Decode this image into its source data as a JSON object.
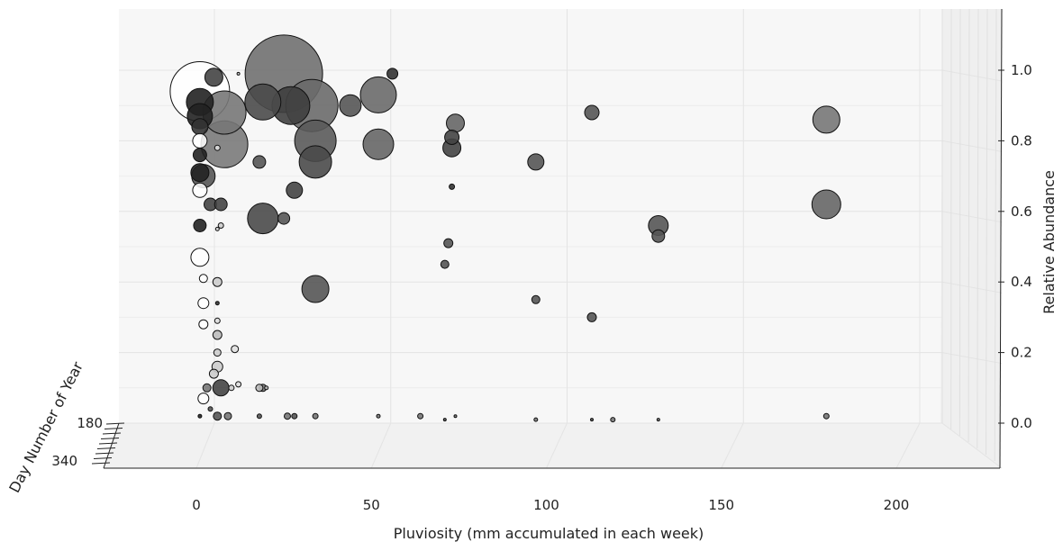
{
  "chart_data": {
    "type": "scatter",
    "projection": "3d",
    "title": "",
    "xlabel": "Pluviosity (mm accumulated in each week)",
    "ylabel": "Day Number of Year",
    "zlabel": "Relative Abundance",
    "xticks": [
      "0",
      "50",
      "100",
      "150",
      "200"
    ],
    "yticks": [
      "180",
      "340"
    ],
    "zticks": [
      "0.0",
      "0.2",
      "0.4",
      "0.6",
      "0.8",
      "1.0"
    ],
    "xlim": [
      -25,
      230
    ],
    "zlim": [
      -0.12,
      1.17
    ],
    "grid": true,
    "colors": {
      "pane": "#f7f7f7",
      "grid": "#e4e4e4",
      "marker_edge": "#111111",
      "marker_fill_dark": "#555555",
      "marker_fill_light": "#d8d8d8",
      "marker_fill_white": "#ffffff"
    },
    "points_note": "x = pluviosity (mm), z = relative abundance, s = relative bubble size, c = fill",
    "points": [
      {
        "x": 25,
        "z": 0.99,
        "s": 43,
        "c": "#707070"
      },
      {
        "x": 1,
        "z": 0.94,
        "s": 33,
        "c": "#ffffff"
      },
      {
        "x": 33,
        "z": 0.9,
        "s": 29,
        "c": "#6a6a6a"
      },
      {
        "x": 8,
        "z": 0.79,
        "s": 26,
        "c": "#7a7a7a"
      },
      {
        "x": 8,
        "z": 0.88,
        "s": 24,
        "c": "#777777"
      },
      {
        "x": 19,
        "z": 0.58,
        "s": 17,
        "c": "#4a4a4a"
      },
      {
        "x": 19,
        "z": 0.91,
        "s": 20,
        "c": "#4a4a4a"
      },
      {
        "x": 27,
        "z": 0.9,
        "s": 21,
        "c": "#3f3f3f"
      },
      {
        "x": 34,
        "z": 0.8,
        "s": 23,
        "c": "#5a5a5a"
      },
      {
        "x": 34,
        "z": 0.74,
        "s": 18,
        "c": "#4a4a4a"
      },
      {
        "x": 34,
        "z": 0.38,
        "s": 15,
        "c": "#555555"
      },
      {
        "x": 52,
        "z": 0.93,
        "s": 20,
        "c": "#6a6a6a"
      },
      {
        "x": 52,
        "z": 0.79,
        "s": 17,
        "c": "#666666"
      },
      {
        "x": 44,
        "z": 0.9,
        "s": 12,
        "c": "#555555"
      },
      {
        "x": 56,
        "z": 0.99,
        "s": 6,
        "c": "#333333"
      },
      {
        "x": 74,
        "z": 0.85,
        "s": 10,
        "c": "#666666"
      },
      {
        "x": 73,
        "z": 0.81,
        "s": 8,
        "c": "#444444"
      },
      {
        "x": 73,
        "z": 0.78,
        "s": 10,
        "c": "#444444"
      },
      {
        "x": 73,
        "z": 0.67,
        "s": 3,
        "c": "#333333"
      },
      {
        "x": 72,
        "z": 0.51,
        "s": 5,
        "c": "#555555"
      },
      {
        "x": 71,
        "z": 0.45,
        "s": 4.5,
        "c": "#555555"
      },
      {
        "x": 97,
        "z": 0.74,
        "s": 9,
        "c": "#555555"
      },
      {
        "x": 97,
        "z": 0.35,
        "s": 4.5,
        "c": "#555555"
      },
      {
        "x": 113,
        "z": 0.88,
        "s": 8,
        "c": "#555555"
      },
      {
        "x": 113,
        "z": 0.3,
        "s": 5,
        "c": "#555555"
      },
      {
        "x": 132,
        "z": 0.56,
        "s": 11,
        "c": "#555555"
      },
      {
        "x": 132,
        "z": 0.53,
        "s": 7,
        "c": "#555555"
      },
      {
        "x": 180,
        "z": 0.86,
        "s": 15,
        "c": "#777777"
      },
      {
        "x": 180,
        "z": 0.62,
        "s": 16,
        "c": "#666666"
      },
      {
        "x": 5,
        "z": 0.98,
        "s": 10,
        "c": "#444444"
      },
      {
        "x": 1,
        "z": 0.91,
        "s": 15,
        "c": "#222222"
      },
      {
        "x": 1,
        "z": 0.87,
        "s": 14,
        "c": "#222222"
      },
      {
        "x": 1,
        "z": 0.84,
        "s": 9,
        "c": "#333333"
      },
      {
        "x": 1,
        "z": 0.8,
        "s": 8,
        "c": "#ffffff"
      },
      {
        "x": 1,
        "z": 0.76,
        "s": 7.5,
        "c": "#222222"
      },
      {
        "x": 2,
        "z": 0.7,
        "s": 13,
        "c": "#555555"
      },
      {
        "x": 1,
        "z": 0.71,
        "s": 10,
        "c": "#222222"
      },
      {
        "x": 1,
        "z": 0.66,
        "s": 8,
        "c": "#ffffff"
      },
      {
        "x": 4,
        "z": 0.62,
        "s": 7,
        "c": "#444444"
      },
      {
        "x": 7,
        "z": 0.62,
        "s": 7,
        "c": "#444444"
      },
      {
        "x": 1,
        "z": 0.56,
        "s": 7,
        "c": "#222222"
      },
      {
        "x": 1,
        "z": 0.47,
        "s": 10,
        "c": "#ffffff"
      },
      {
        "x": 2,
        "z": 0.41,
        "s": 4.5,
        "c": "#ffffff"
      },
      {
        "x": 2,
        "z": 0.34,
        "s": 6,
        "c": "#ffffff"
      },
      {
        "x": 2,
        "z": 0.28,
        "s": 5,
        "c": "#ffffff"
      },
      {
        "x": 2,
        "z": 0.07,
        "s": 6,
        "c": "#ffffff"
      },
      {
        "x": 18,
        "z": 0.74,
        "s": 7,
        "c": "#555555"
      },
      {
        "x": 28,
        "z": 0.66,
        "s": 9,
        "c": "#444444"
      },
      {
        "x": 25,
        "z": 0.58,
        "s": 6.5,
        "c": "#555555"
      },
      {
        "x": 7,
        "z": 0.1,
        "s": 9,
        "c": "#444444"
      },
      {
        "x": 3,
        "z": 0.1,
        "s": 4.5,
        "c": "#777777"
      },
      {
        "x": 19,
        "z": 0.1,
        "s": 4,
        "c": "#777777"
      },
      {
        "x": 9,
        "z": 0.02,
        "s": 4,
        "c": "#777777"
      },
      {
        "x": 6,
        "z": 0.02,
        "s": 4.5,
        "c": "#555555"
      },
      {
        "x": 18,
        "z": 0.02,
        "s": 2.5,
        "c": "#555555"
      },
      {
        "x": 26,
        "z": 0.02,
        "s": 3.5,
        "c": "#777777"
      },
      {
        "x": 28,
        "z": 0.02,
        "s": 3,
        "c": "#555555"
      },
      {
        "x": 34,
        "z": 0.02,
        "s": 3,
        "c": "#777777"
      },
      {
        "x": 52,
        "z": 0.02,
        "s": 2,
        "c": "#777777"
      },
      {
        "x": 64,
        "z": 0.02,
        "s": 3,
        "c": "#777777"
      },
      {
        "x": 71,
        "z": 0.01,
        "s": 1.5,
        "c": "#555555"
      },
      {
        "x": 74,
        "z": 0.02,
        "s": 1.5,
        "c": "#777777"
      },
      {
        "x": 97,
        "z": 0.01,
        "s": 2,
        "c": "#777777"
      },
      {
        "x": 113,
        "z": 0.01,
        "s": 1.5,
        "c": "#555555"
      },
      {
        "x": 119,
        "z": 0.01,
        "s": 2.5,
        "c": "#777777"
      },
      {
        "x": 132,
        "z": 0.01,
        "s": 1.5,
        "c": "#777777"
      },
      {
        "x": 180,
        "z": 0.02,
        "s": 3,
        "c": "#777777"
      },
      {
        "x": 4,
        "z": 0.04,
        "s": 2.5,
        "c": "#555555"
      },
      {
        "x": 1,
        "z": 0.02,
        "s": 2,
        "c": "#222222"
      },
      {
        "x": 6,
        "z": 0.25,
        "s": 5,
        "c": "#bbbbbb"
      },
      {
        "x": 6,
        "z": 0.2,
        "s": 4,
        "c": "#cccccc"
      },
      {
        "x": 6,
        "z": 0.16,
        "s": 6,
        "c": "#cccccc"
      },
      {
        "x": 5,
        "z": 0.14,
        "s": 5,
        "c": "#cccccc"
      },
      {
        "x": 11,
        "z": 0.21,
        "s": 4,
        "c": "#e0e0e0"
      },
      {
        "x": 12,
        "z": 0.11,
        "s": 3,
        "c": "#dddddd"
      },
      {
        "x": 10,
        "z": 0.1,
        "s": 3,
        "c": "#cccccc"
      },
      {
        "x": 18,
        "z": 0.1,
        "s": 4,
        "c": "#bbbbbb"
      },
      {
        "x": 20,
        "z": 0.1,
        "s": 2,
        "c": "#bbbbbb"
      },
      {
        "x": 7,
        "z": 0.56,
        "s": 3,
        "c": "#cccccc"
      },
      {
        "x": 6,
        "z": 0.55,
        "s": 2,
        "c": "#cccccc"
      },
      {
        "x": 6,
        "z": 0.4,
        "s": 5,
        "c": "#cccccc"
      },
      {
        "x": 6,
        "z": 0.29,
        "s": 3,
        "c": "#dddddd"
      },
      {
        "x": 6,
        "z": 0.78,
        "s": 3,
        "c": "#dddddd"
      },
      {
        "x": 12,
        "z": 0.99,
        "s": 1.5,
        "c": "#cccccc"
      },
      {
        "x": 6,
        "z": 0.34,
        "s": 2,
        "c": "#333333"
      }
    ]
  }
}
